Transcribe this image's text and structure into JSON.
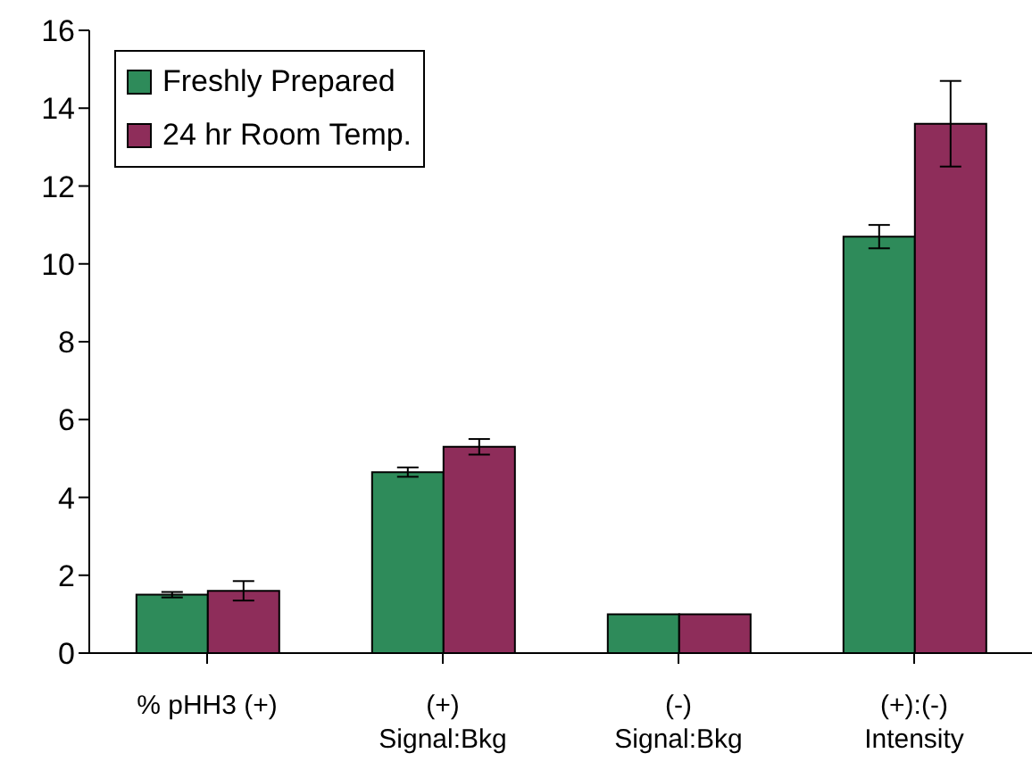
{
  "chart_data": {
    "type": "bar",
    "categories": [
      "% pHH3 (+)",
      "(+)\nSignal:Bkg",
      "(-)\nSignal:Bkg",
      "(+):(-)\nIntensity"
    ],
    "series": [
      {
        "name": "Freshly Prepared",
        "color": "#2e8b5a",
        "values": [
          1.5,
          4.65,
          1.0,
          10.7
        ],
        "errors": [
          0.07,
          0.12,
          null,
          0.3
        ]
      },
      {
        "name": "24 hr Room Temp.",
        "color": "#8e2d5a",
        "values": [
          1.6,
          5.3,
          1.0,
          13.6
        ],
        "errors": [
          0.25,
          0.2,
          null,
          1.1
        ]
      }
    ],
    "ylim": [
      0,
      16
    ],
    "yticks": [
      0,
      2,
      4,
      6,
      8,
      10,
      12,
      14,
      16
    ],
    "grid": false,
    "legend": "top left"
  }
}
